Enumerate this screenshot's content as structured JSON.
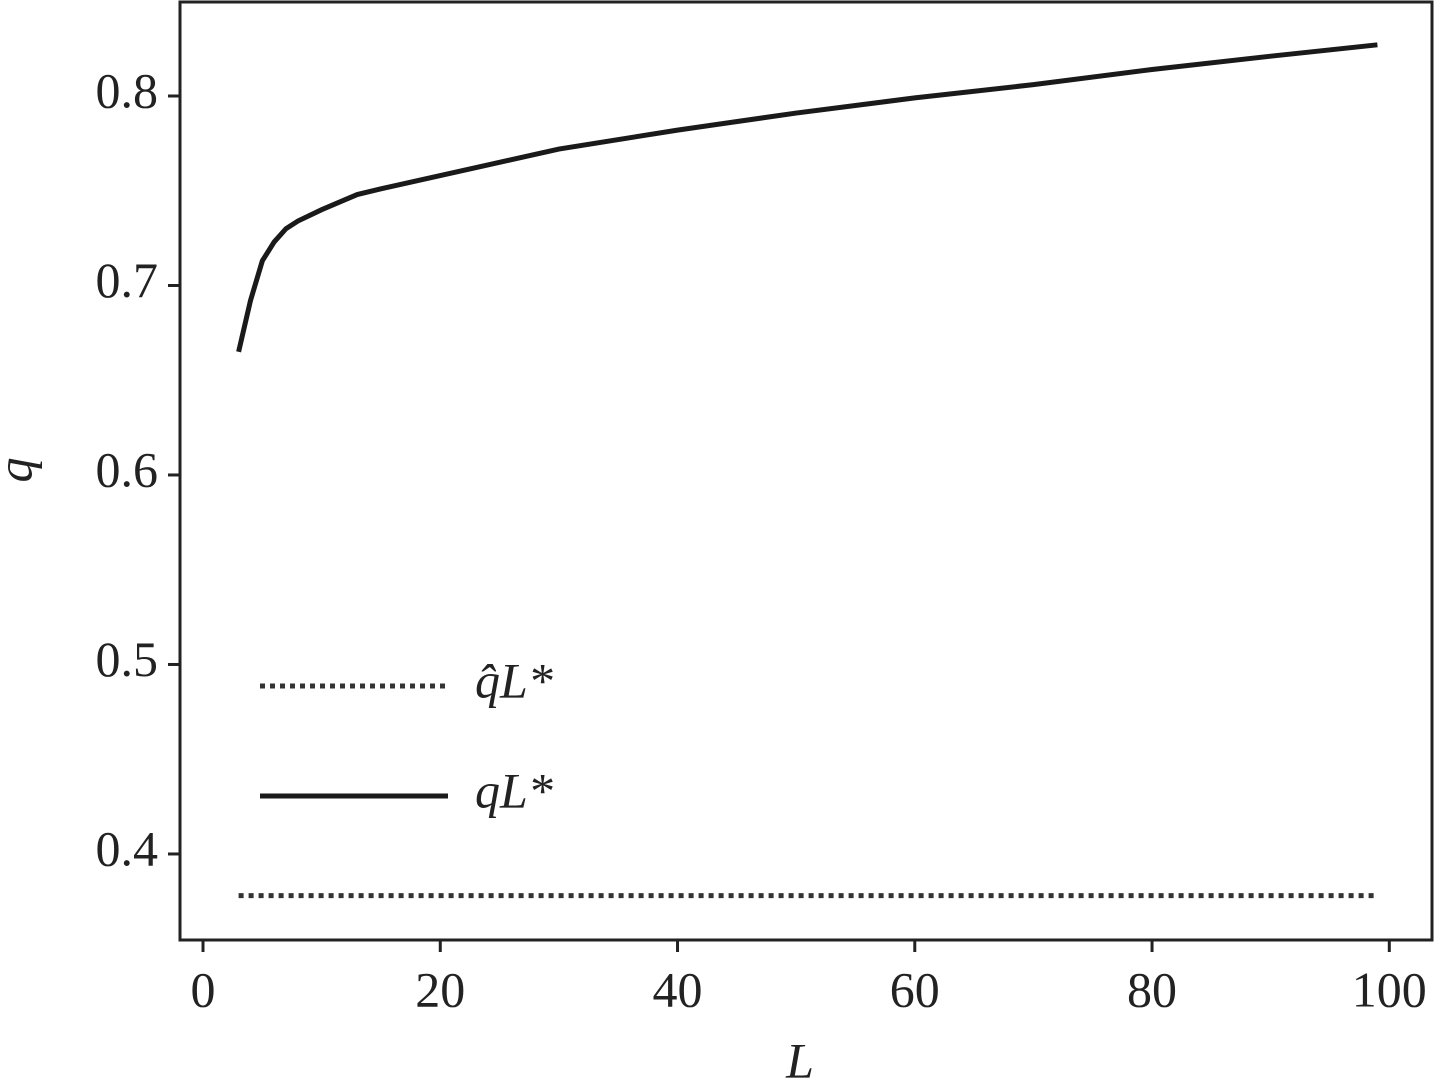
{
  "chart_data": {
    "type": "line",
    "x_label": "L",
    "y_label": "q",
    "xlim": [
      -1.94,
      103.6
    ],
    "ylim": [
      0.3546,
      0.8496
    ],
    "xticks": [
      0,
      20,
      40,
      60,
      80,
      100
    ],
    "yticks": [
      0.4,
      0.5,
      0.6,
      0.7,
      0.8
    ],
    "legend": "lower left",
    "series": [
      {
        "name": "q̂L*",
        "color": "#333333",
        "style": "dotted",
        "x": [
          3,
          99
        ],
        "values": [
          0.378,
          0.378
        ]
      },
      {
        "name": "qL*",
        "color": "#1a1a1a",
        "style": "solid",
        "x": [
          3,
          4,
          5,
          6,
          7,
          8,
          10,
          13,
          15,
          20,
          25,
          30,
          40,
          50,
          60,
          70,
          80,
          90,
          99
        ],
        "values": [
          0.665,
          0.692,
          0.713,
          0.723,
          0.73,
          0.734,
          0.74,
          0.748,
          0.751,
          0.758,
          0.765,
          0.772,
          0.782,
          0.791,
          0.799,
          0.806,
          0.814,
          0.821,
          0.827
        ]
      }
    ]
  }
}
